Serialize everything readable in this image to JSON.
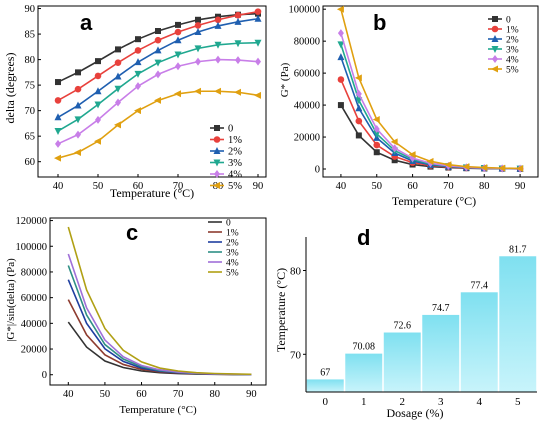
{
  "chart_data": [
    {
      "panel": "a",
      "type": "line",
      "xlabel": "Temperature (°C)",
      "ylabel": "delta (degrees)",
      "x": [
        40,
        45,
        50,
        55,
        60,
        65,
        70,
        75,
        80,
        85,
        90
      ],
      "xlim": [
        35,
        92
      ],
      "ylim": [
        57,
        90.5
      ],
      "xticks": [
        "40",
        "50",
        "60",
        "70",
        "80",
        "90"
      ],
      "yticks": [
        "60",
        "65",
        "70",
        "75",
        "80",
        "85",
        "90"
      ],
      "legend_position": "right",
      "series": [
        {
          "name": "0",
          "color": "#333333",
          "marker": "square",
          "values": [
            75.6,
            77.5,
            79.7,
            82.0,
            84.0,
            85.6,
            86.8,
            87.8,
            88.4,
            88.8,
            89.0
          ]
        },
        {
          "name": "1%",
          "color": "#e8413c",
          "marker": "circle",
          "values": [
            72.0,
            74.2,
            76.8,
            79.4,
            81.8,
            83.8,
            85.4,
            86.7,
            87.8,
            88.7,
            89.4
          ]
        },
        {
          "name": "2%",
          "color": "#1f5fb0",
          "marker": "triangle-up",
          "values": [
            68.7,
            71.0,
            73.8,
            76.7,
            79.5,
            81.8,
            83.8,
            85.4,
            86.6,
            87.4,
            88.0
          ]
        },
        {
          "name": "3%",
          "color": "#20a890",
          "marker": "triangle-down",
          "values": [
            66.0,
            68.3,
            71.2,
            74.3,
            77.2,
            79.4,
            81.0,
            82.2,
            82.9,
            83.2,
            83.3
          ]
        },
        {
          "name": "4%",
          "color": "#c87ee8",
          "marker": "diamond",
          "values": [
            63.5,
            65.3,
            68.2,
            71.6,
            74.8,
            77.1,
            78.7,
            79.6,
            80.0,
            79.9,
            79.6
          ]
        },
        {
          "name": "5%",
          "color": "#e0a010",
          "marker": "triangle-left",
          "values": [
            60.7,
            61.8,
            64.0,
            67.2,
            70.0,
            72.0,
            73.3,
            73.8,
            73.8,
            73.6,
            73.0
          ]
        }
      ]
    },
    {
      "panel": "b",
      "type": "line",
      "xlabel": "Temperature (°C)",
      "ylabel": "G* (Pa)",
      "x": [
        40,
        45,
        50,
        55,
        60,
        65,
        70,
        75,
        80,
        85,
        90
      ],
      "xlim": [
        35,
        95
      ],
      "ylim": [
        -5000,
        102000
      ],
      "xticks": [
        "40",
        "50",
        "60",
        "70",
        "80",
        "90"
      ],
      "yticks": [
        "0",
        "20000",
        "40000",
        "60000",
        "80000",
        "100000"
      ],
      "legend_position": "top-right",
      "series": [
        {
          "name": "0",
          "color": "#333333",
          "marker": "square",
          "values": [
            40000,
            21000,
            10500,
            5500,
            2800,
            1500,
            900,
            500,
            300,
            200,
            100
          ]
        },
        {
          "name": "1%",
          "color": "#e8413c",
          "marker": "circle",
          "values": [
            56000,
            30000,
            15000,
            7800,
            4000,
            2200,
            1200,
            700,
            400,
            250,
            150
          ]
        },
        {
          "name": "2%",
          "color": "#1f5fb0",
          "marker": "triangle-up",
          "values": [
            70000,
            38000,
            19500,
            10000,
            5000,
            2600,
            1500,
            850,
            500,
            300,
            200
          ]
        },
        {
          "name": "3%",
          "color": "#20a890",
          "marker": "triangle-down",
          "values": [
            78000,
            43000,
            22000,
            11500,
            6000,
            3100,
            1800,
            1000,
            600,
            350,
            250
          ]
        },
        {
          "name": "4%",
          "color": "#c87ee8",
          "marker": "diamond",
          "values": [
            85000,
            47000,
            25000,
            13000,
            6800,
            3600,
            2000,
            1100,
            650,
            400,
            250
          ]
        },
        {
          "name": "5%",
          "color": "#e0a010",
          "marker": "triangle-left",
          "values": [
            100000,
            57000,
            31000,
            17000,
            9000,
            4800,
            2700,
            1500,
            900,
            550,
            350
          ]
        }
      ]
    },
    {
      "panel": "c",
      "type": "line",
      "xlabel": "Temperature (°C)",
      "ylabel": "|G*|/sin(delta) (Pa)",
      "x": [
        40,
        45,
        50,
        55,
        60,
        65,
        70,
        75,
        80,
        85,
        90
      ],
      "xlim": [
        35,
        94
      ],
      "ylim": [
        -8000,
        122000
      ],
      "xticks": [
        "40",
        "50",
        "60",
        "70",
        "80",
        "90"
      ],
      "yticks": [
        "0",
        "20000",
        "40000",
        "60000",
        "80000",
        "100000",
        "120000"
      ],
      "legend_position": "top-right",
      "series": [
        {
          "name": "0",
          "color": "#333333",
          "values": [
            41000,
            21500,
            10700,
            5600,
            2900,
            1550,
            900,
            500,
            300,
            200,
            100
          ]
        },
        {
          "name": "1%",
          "color": "#8e3c30",
          "values": [
            58500,
            31000,
            15500,
            8000,
            4100,
            2250,
            1250,
            700,
            400,
            250,
            150
          ]
        },
        {
          "name": "2%",
          "color": "#1f3fa0",
          "values": [
            74000,
            40000,
            20200,
            10400,
            5200,
            2700,
            1550,
            850,
            500,
            300,
            200
          ]
        },
        {
          "name": "3%",
          "color": "#2f8f85",
          "values": [
            85000,
            46500,
            23500,
            12200,
            6300,
            3250,
            1850,
            1000,
            600,
            350,
            250
          ]
        },
        {
          "name": "4%",
          "color": "#a070d8",
          "values": [
            94000,
            52000,
            27000,
            14000,
            7200,
            3800,
            2100,
            1150,
            650,
            400,
            250
          ]
        },
        {
          "name": "5%",
          "color": "#b0a014",
          "values": [
            115000,
            66000,
            36000,
            19000,
            10000,
            5200,
            2900,
            1600,
            950,
            580,
            370
          ]
        }
      ]
    },
    {
      "panel": "d",
      "type": "bar",
      "xlabel": "Dosage (%)",
      "ylabel": "Temperature (°C)",
      "categories": [
        "0",
        "1",
        "2",
        "3",
        "4",
        "5"
      ],
      "values": [
        67,
        70.08,
        72.6,
        74.7,
        77.4,
        81.7
      ],
      "data_labels": [
        "67",
        "70.08",
        "72.6",
        "74.7",
        "77.4",
        "81.7"
      ],
      "ylim": [
        65.5,
        84
      ],
      "yticks": [
        "70",
        "80"
      ],
      "bar_color": "#8fe6f2"
    }
  ]
}
